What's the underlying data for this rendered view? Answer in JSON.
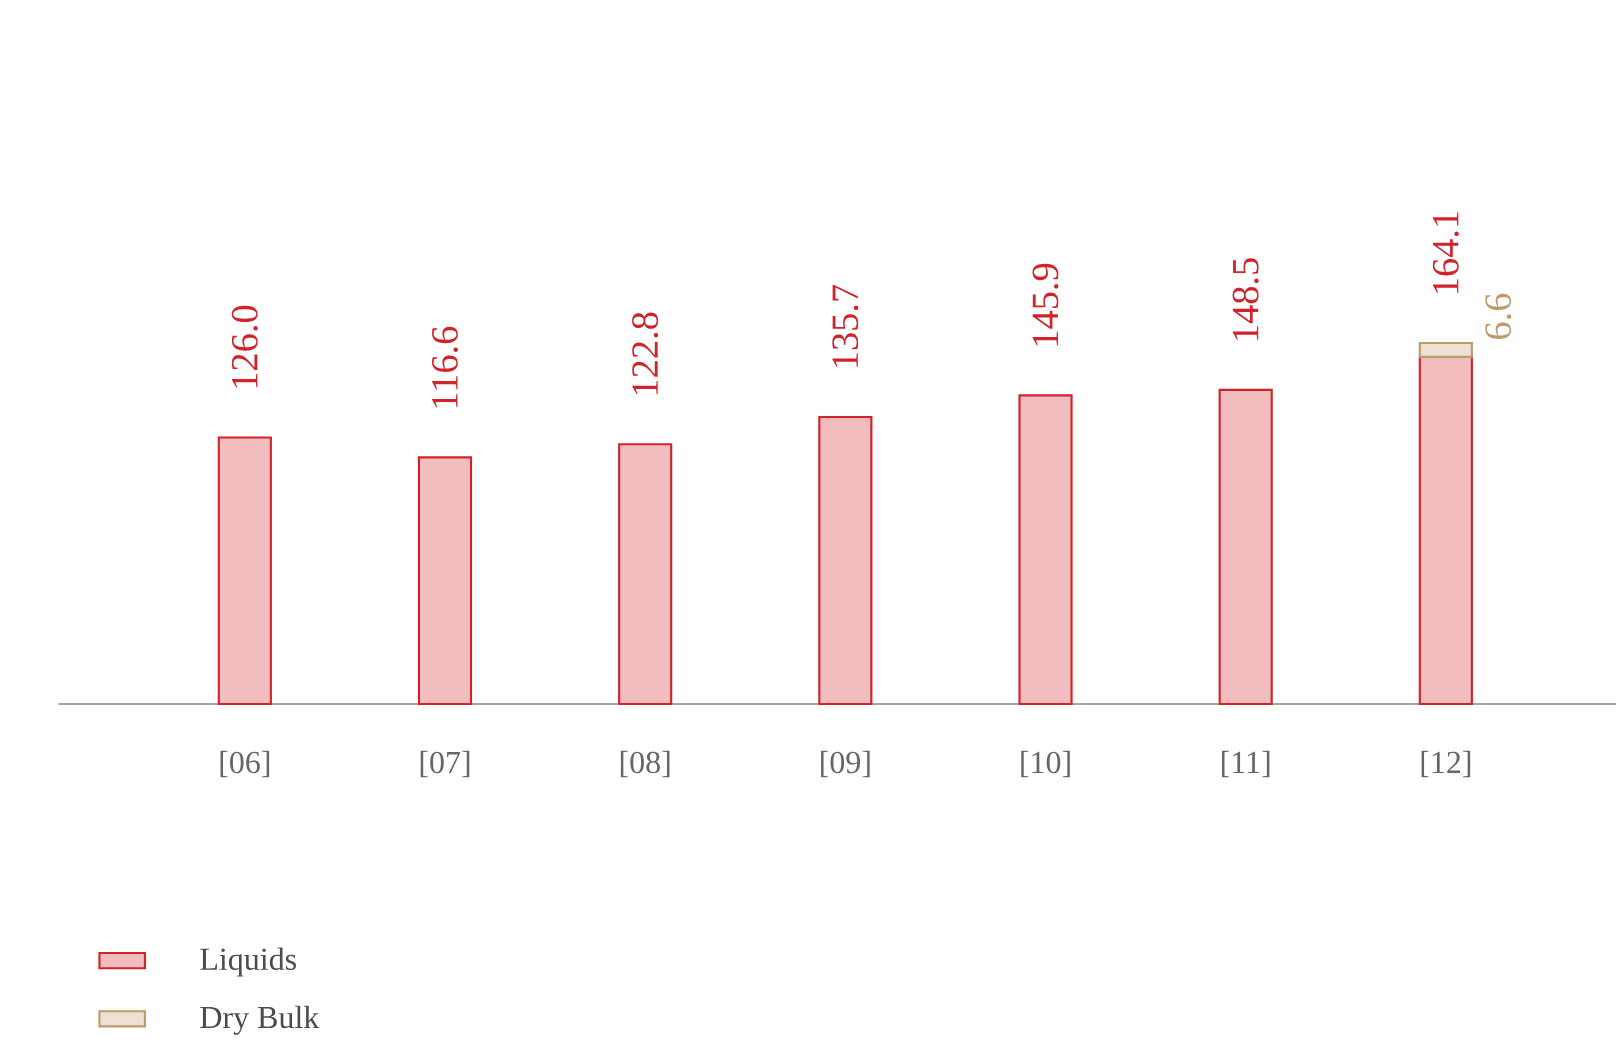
{
  "chart_data": {
    "type": "bar",
    "stacked": true,
    "legend": "bottom left",
    "categories": [
      "[06]",
      "[07]",
      "[08]",
      "[09]",
      "[10]",
      "[11]",
      "[12]"
    ],
    "series": [
      {
        "name": "Liquids",
        "color": "#d2232a",
        "values": [
          126.0,
          116.6,
          122.8,
          135.7,
          145.9,
          148.5,
          164.1
        ],
        "value_labels": [
          "126.0",
          "116.6",
          "122.8",
          "135.7",
          "145.9",
          "148.5",
          "164.1"
        ]
      },
      {
        "name": "Dry Bulk",
        "color": "#c19a6b",
        "values": [
          null,
          null,
          null,
          null,
          null,
          null,
          6.6
        ],
        "value_labels": [
          null,
          null,
          null,
          null,
          null,
          null,
          "6.6"
        ]
      }
    ]
  }
}
